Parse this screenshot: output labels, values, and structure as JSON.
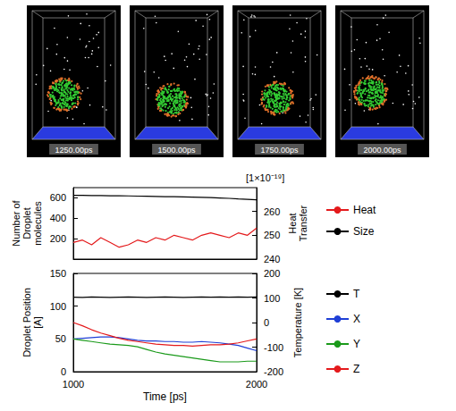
{
  "snapshots": {
    "labels": [
      "1250.00ps",
      "1500.00ps",
      "1750.00ps",
      "2000.00ps"
    ]
  },
  "chart_data": [
    {
      "type": "line",
      "x": [
        1000,
        1050,
        1100,
        1150,
        1200,
        1250,
        1300,
        1350,
        1400,
        1450,
        1500,
        1550,
        1600,
        1650,
        1700,
        1750,
        1800,
        1850,
        1900,
        1950,
        2000
      ],
      "xlim": [
        1000,
        2000
      ],
      "xticks": [
        1000,
        2000
      ],
      "ylabel": "Number of Droplet molecules",
      "ylim": [
        0,
        700
      ],
      "yticks": [
        200,
        400,
        600
      ],
      "y2label": "Heat Transfer",
      "y2lim": [
        240,
        270
      ],
      "y2ticks": [
        240,
        250,
        260
      ],
      "annotation": "[1×10⁻¹⁹]",
      "grid": false,
      "legend": "right",
      "tick_labels": "y",
      "series": [
        {
          "name": "Heat",
          "color": "#e41a1c",
          "axis": "y2",
          "values": [
            247,
            248,
            246,
            249,
            247,
            245,
            246,
            248,
            247,
            249,
            248,
            250,
            249,
            248,
            250,
            251,
            250,
            249,
            251,
            250,
            253
          ]
        },
        {
          "name": "Size",
          "color": "#000000",
          "values": [
            625,
            624,
            623,
            622,
            621,
            620,
            619,
            617,
            616,
            614,
            612,
            611,
            609,
            607,
            605,
            602,
            599,
            595,
            590,
            586,
            580
          ]
        }
      ]
    },
    {
      "type": "line",
      "x": [
        1000,
        1050,
        1100,
        1150,
        1200,
        1250,
        1300,
        1350,
        1400,
        1450,
        1500,
        1550,
        1600,
        1650,
        1700,
        1750,
        1800,
        1850,
        1900,
        1950,
        2000
      ],
      "xlim": [
        1000,
        2000
      ],
      "xticks": [
        1000,
        2000
      ],
      "xlabel": "Time [ps]",
      "ylabel": "Droplet Position [A]",
      "ylim": [
        0,
        150
      ],
      "yticks": [
        0,
        50,
        100,
        150
      ],
      "y2label": "Temperature [K]",
      "y2lim": [
        -200,
        200
      ],
      "y2ticks": [
        -200,
        -100,
        0,
        100,
        200
      ],
      "grid": false,
      "legend": "right",
      "series": [
        {
          "name": "T",
          "color": "#000000",
          "axis": "y2",
          "values": [
            103,
            102,
            104,
            103,
            102,
            103,
            104,
            103,
            102,
            103,
            104,
            103,
            102,
            103,
            104,
            103,
            104,
            103,
            104,
            103,
            104
          ]
        },
        {
          "name": "X",
          "color": "#1f3fd6",
          "values": [
            50,
            51,
            52,
            53,
            53,
            52,
            50,
            48,
            47,
            47,
            46,
            46,
            45,
            45,
            46,
            45,
            44,
            42,
            40,
            36,
            32
          ]
        },
        {
          "name": "Y",
          "color": "#1a9a1a",
          "values": [
            50,
            48,
            46,
            44,
            42,
            41,
            40,
            38,
            34,
            30,
            27,
            25,
            23,
            21,
            19,
            17,
            15,
            15,
            15,
            16,
            16
          ]
        },
        {
          "name": "Z",
          "color": "#e41a1c",
          "values": [
            75,
            70,
            64,
            59,
            55,
            51,
            48,
            46,
            44,
            42,
            41,
            40,
            40,
            39,
            40,
            41,
            41,
            42,
            44,
            47,
            50
          ]
        }
      ]
    }
  ]
}
